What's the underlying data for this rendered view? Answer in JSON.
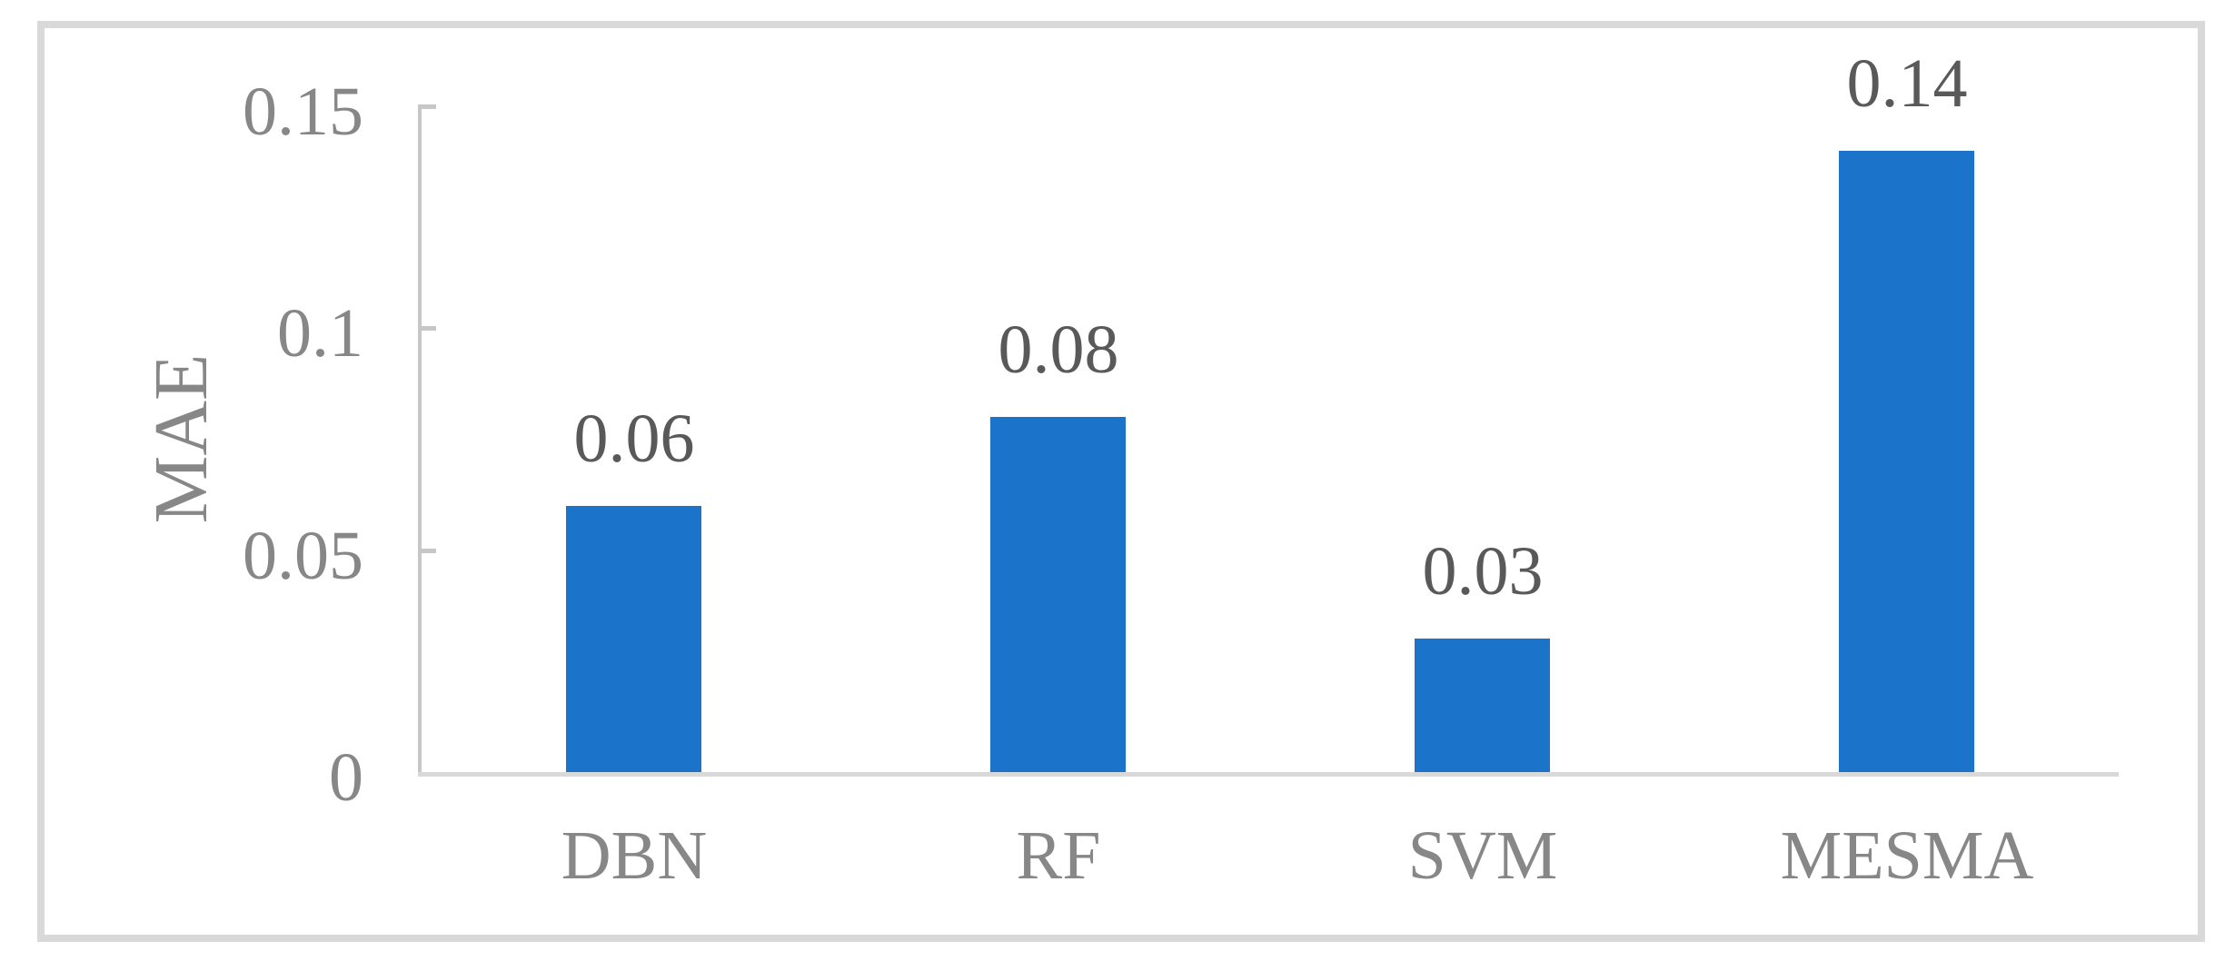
{
  "figure": {
    "description": "Bar chart comparing MAE of four models",
    "background": "#ffffff"
  },
  "chart_data": {
    "type": "bar",
    "title": "",
    "xlabel": "",
    "ylabel": "MAE",
    "categories": [
      "DBN",
      "RF",
      "SVM",
      "MESMA"
    ],
    "values": [
      0.06,
      0.08,
      0.03,
      0.14
    ],
    "data_labels": [
      "0.06",
      "0.08",
      "0.03",
      "0.14"
    ],
    "ylim": [
      0,
      0.15
    ],
    "yticks": [
      0,
      0.05,
      0.1,
      0.15
    ],
    "ytick_labels": [
      "0",
      "0.05",
      "0.1",
      "0.15"
    ],
    "grid": false,
    "legend_position": "none"
  },
  "colors": {
    "bar": "#1B74CA",
    "axis_text": "#878787",
    "data_label_text": "#595959",
    "axis_line": "#c7c7c7",
    "baseline": "#d9d9d9",
    "frame_border": "#d9d9d9",
    "background": "#ffffff"
  }
}
